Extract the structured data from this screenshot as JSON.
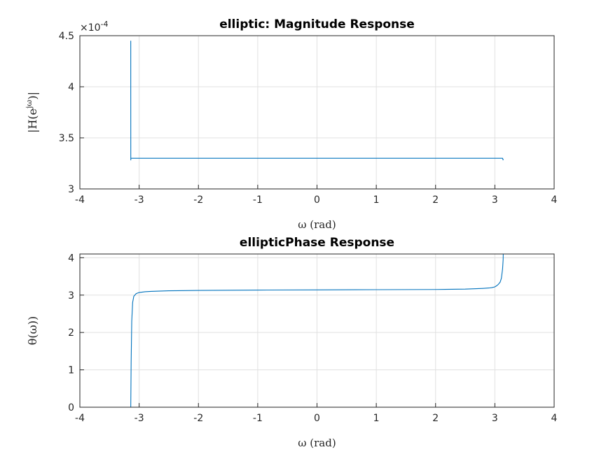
{
  "chart_data": [
    {
      "type": "line",
      "title": "elliptic: Magnitude Response",
      "xlabel": "ω (rad)",
      "ylabel": "|H(e^{jω})|",
      "ylabel_main": "|H(e",
      "ylabel_sup": "jω",
      "ylabel_tail": ")|",
      "xlim": [
        -4,
        4
      ],
      "ylim": [
        3,
        4.5
      ],
      "y_exponent": "×10",
      "y_exponent_power": "-4",
      "grid": true,
      "xticks": [
        "-4",
        "-3",
        "-2",
        "-1",
        "0",
        "1",
        "2",
        "3",
        "4"
      ],
      "yticks": [
        "3",
        "3.5",
        "4",
        "4.5"
      ],
      "color": "#0072bd",
      "series": [
        {
          "x": [
            -3.1416,
            -3.1416,
            -3.1415,
            -3.141,
            -3.14,
            -3.138,
            -3.135,
            -3.13,
            -3.12,
            -3.1,
            -3.05,
            -3.0,
            -2.5,
            -2.0,
            -1.0,
            0.0,
            1.0,
            2.0,
            2.5,
            3.0,
            3.05,
            3.1,
            3.12,
            3.13,
            3.135,
            3.138,
            3.14
          ],
          "y": [
            4.45,
            3.95,
            3.9,
            3.28,
            3.3,
            3.3,
            3.3,
            3.3,
            3.3,
            3.3,
            3.3,
            3.3,
            3.3,
            3.3,
            3.3,
            3.3,
            3.3,
            3.3,
            3.3,
            3.3,
            3.3,
            3.3,
            3.3,
            3.3,
            3.29,
            3.29,
            3.28
          ]
        }
      ]
    },
    {
      "type": "line",
      "title": "ellipticPhase Response",
      "xlabel": "ω (rad)",
      "ylabel": "θ(ω))",
      "xlim": [
        -4,
        4
      ],
      "ylim": [
        0,
        4.1
      ],
      "grid": true,
      "xticks": [
        "-4",
        "-3",
        "-2",
        "-1",
        "0",
        "1",
        "2",
        "3",
        "4"
      ],
      "yticks": [
        "0",
        "1",
        "2",
        "3",
        "4"
      ],
      "color": "#0072bd",
      "series": [
        {
          "x": [
            -3.1416,
            -3.135,
            -3.125,
            -3.11,
            -3.09,
            -3.05,
            -3.0,
            -2.9,
            -2.8,
            -2.5,
            -2.0,
            -1.0,
            0.0,
            1.0,
            2.0,
            2.5,
            2.8,
            2.9,
            2.95,
            3.0,
            3.03,
            3.06,
            3.09,
            3.11,
            3.13,
            3.14,
            3.1416
          ],
          "y": [
            0.0,
            1.2,
            2.3,
            2.8,
            2.97,
            3.04,
            3.07,
            3.09,
            3.1,
            3.115,
            3.125,
            3.135,
            3.14,
            3.145,
            3.15,
            3.16,
            3.18,
            3.19,
            3.2,
            3.22,
            3.25,
            3.29,
            3.35,
            3.45,
            3.7,
            3.95,
            4.1
          ]
        }
      ]
    }
  ]
}
